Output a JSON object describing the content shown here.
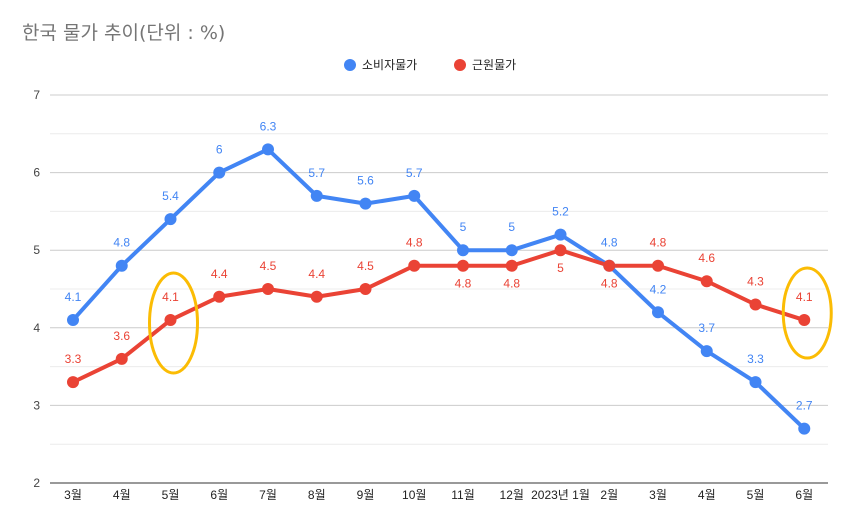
{
  "chart_data": {
    "type": "line",
    "title": "한국 물가 추이(단위 : %)",
    "xlabel": "",
    "ylabel": "",
    "categories": [
      "3월",
      "4월",
      "5월",
      "6월",
      "7월",
      "8월",
      "9월",
      "10월",
      "11월",
      "12월",
      "2023년 1월",
      "2월",
      "3월",
      "4월",
      "5월",
      "6월"
    ],
    "ylim": [
      2,
      7
    ],
    "yticks": [
      2,
      3,
      4,
      5,
      6,
      7
    ],
    "grid": true,
    "legend_position": "top",
    "series": [
      {
        "name": "소비자물가",
        "color": "#4285f4",
        "values": [
          4.1,
          4.8,
          5.4,
          6,
          6.3,
          5.7,
          5.6,
          5.7,
          5,
          5,
          5.2,
          4.8,
          4.2,
          3.7,
          3.3,
          2.7
        ]
      },
      {
        "name": "근원물가",
        "color": "#ea4335",
        "values": [
          3.3,
          3.6,
          4.1,
          4.4,
          4.5,
          4.4,
          4.5,
          4.8,
          4.8,
          4.8,
          5,
          4.8,
          4.8,
          4.6,
          4.3,
          4.1
        ]
      }
    ],
    "annotations": [
      {
        "type": "ellipse",
        "color": "#fbbc04",
        "category": "5월",
        "series": "근원물가"
      },
      {
        "type": "ellipse",
        "color": "#fbbc04",
        "category": "6월",
        "series": "근원물가",
        "index": 15
      }
    ]
  }
}
